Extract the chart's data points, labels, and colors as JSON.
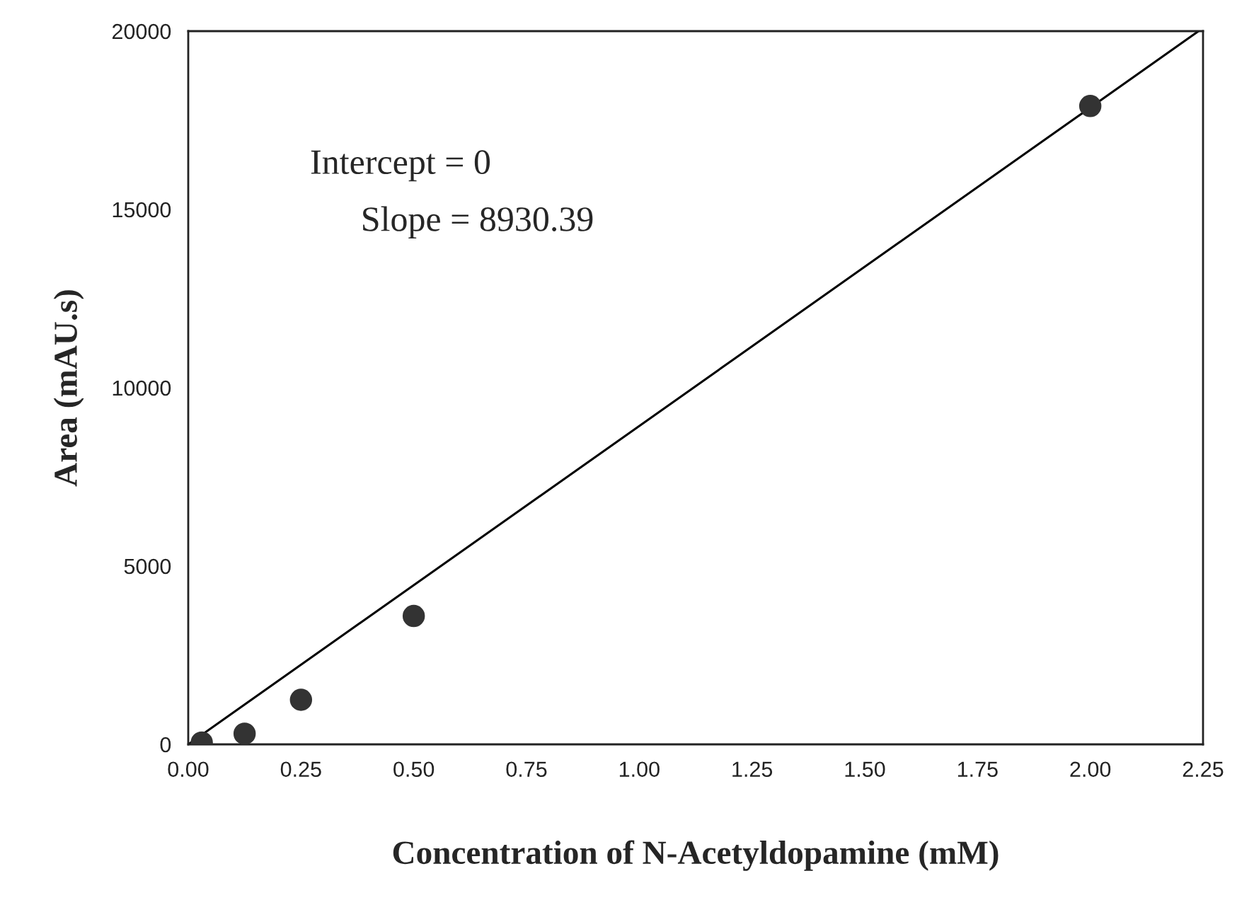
{
  "chart_data": {
    "type": "scatter",
    "xlabel": "Concentration of N-Acetyldopamine (mM)",
    "ylabel": "Area (mAU.s)",
    "annotations": [
      "Intercept = 0",
      "Slope = 8930.39"
    ],
    "series": [
      {
        "color": "#333333",
        "marker": "circle",
        "x": [
          0.03,
          0.125,
          0.25,
          0.5,
          2.0
        ],
        "values": [
          50,
          300,
          1250,
          3600,
          17900
        ]
      },
      {
        "type": "line",
        "color": "#000000",
        "marker": "none",
        "x": [
          0,
          2.24
        ],
        "values": [
          0,
          20000
        ]
      }
    ],
    "xlim": [
      0,
      2.25
    ],
    "xticks": [
      {
        "value": 0,
        "label": "0.00"
      },
      {
        "value": 0.25,
        "label": "0.25"
      },
      {
        "value": 0.5,
        "label": "0.50"
      },
      {
        "value": 0.75,
        "label": "0.75"
      },
      {
        "value": 1,
        "label": "1.00"
      },
      {
        "value": 1.25,
        "label": "1.25"
      },
      {
        "value": 1.5,
        "label": "1.50"
      },
      {
        "value": 1.75,
        "label": "1.75"
      },
      {
        "value": 2,
        "label": "2.00"
      },
      {
        "value": 2.25,
        "label": "2.25"
      }
    ],
    "ylim": [
      0,
      20000
    ],
    "yticks": [
      0,
      5000,
      10000,
      15000,
      20000
    ],
    "grid": false,
    "legend": false
  }
}
